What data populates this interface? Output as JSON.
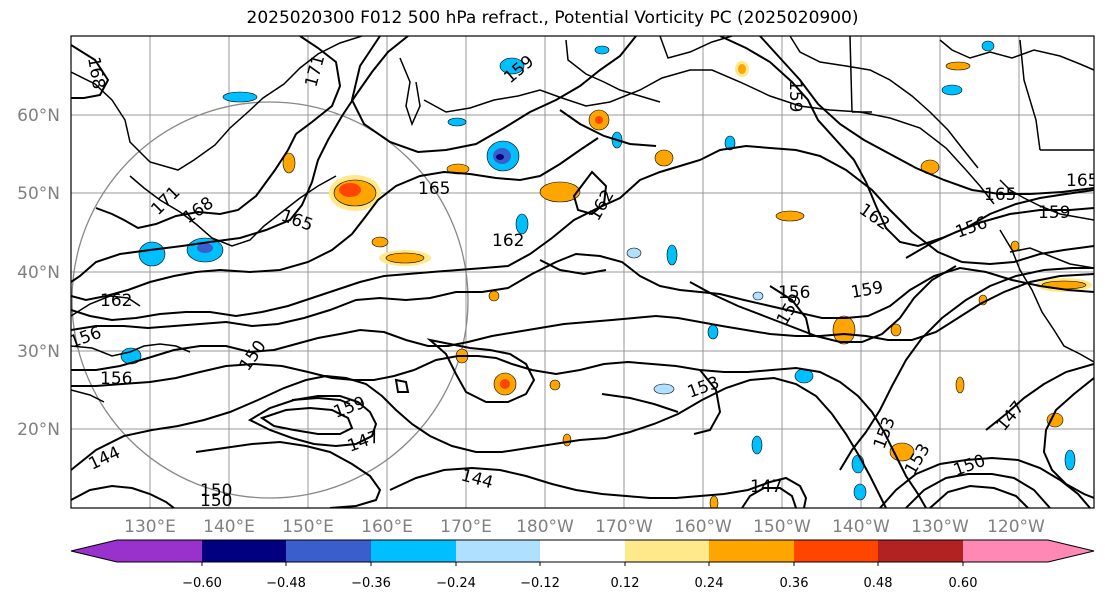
{
  "title": "2025020300 F012 500 hPa refract., Potential Vorticity PC (2025020900)",
  "lat_labels": [
    "60°N",
    "50°N",
    "40°N",
    "30°N",
    "20°N"
  ],
  "lon_labels": [
    "130°E",
    "140°E",
    "150°E",
    "160°E",
    "170°E",
    "180°W",
    "170°W",
    "160°W",
    "150°W",
    "140°W",
    "130°W",
    "120°W"
  ],
  "colorbar": {
    "colors": [
      "#9932cc",
      "#000080",
      "#3a5fcd",
      "#00bfff",
      "#b0e0ff",
      "#ffffff",
      "#ffe98a",
      "#ffa500",
      "#ff4500",
      "#b22222",
      "#ff88b4"
    ],
    "ticks": [
      "−0.60",
      "−0.48",
      "−0.36",
      "−0.24",
      "−0.12",
      "0.12",
      "0.24",
      "0.36",
      "0.48",
      "0.60"
    ]
  },
  "contour_labels": [
    "168",
    "171",
    "159",
    "165",
    "171",
    "168",
    "165",
    "162",
    "165",
    "162",
    "162",
    "159",
    "162",
    "165",
    "159",
    "156",
    "156",
    "159",
    "159",
    "156",
    "150",
    "156",
    "153",
    "159",
    "147",
    "153",
    "147",
    "144",
    "144",
    "147",
    "150",
    "153",
    "150",
    "150"
  ]
}
